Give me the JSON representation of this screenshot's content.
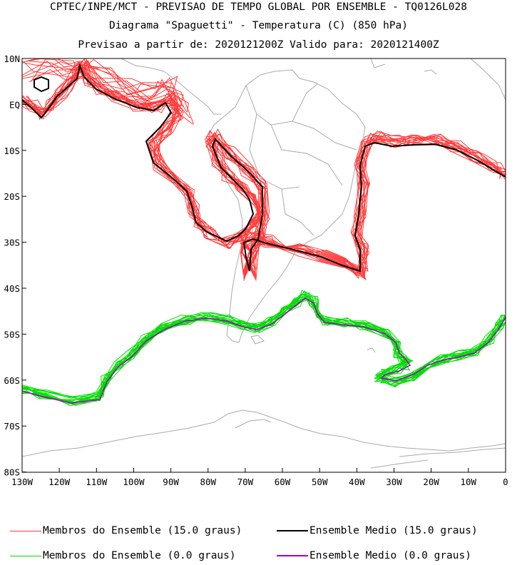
{
  "header": {
    "line1": "CPTEC/INPE/MCT - PREVISAO DE TEMPO GLOBAL POR ENSEMBLE - TQ0126L028",
    "line2": "Diagrama \"Spaguetti\" - Temperatura (C) (850 hPa)",
    "line3": "Previsao a partir de: 2020121200Z  Valido para: 2020121400Z"
  },
  "axes": {
    "lat_labels": [
      "10N",
      "EQ",
      "10S",
      "20S",
      "30S",
      "40S",
      "50S",
      "60S",
      "70S",
      "80S"
    ],
    "lon_labels": [
      "130W",
      "120W",
      "110W",
      "100W",
      "90W",
      "80W",
      "70W",
      "60W",
      "50W",
      "40W",
      "30W",
      "20W",
      "10W",
      "0"
    ]
  },
  "colors": {
    "members_15": "#ff3a3a",
    "mean_15": "#000000",
    "members_0": "#00dd00",
    "mean_0": "#a000c8",
    "coast": "#aaaaaa"
  },
  "legend": {
    "members_15": "Membros do Ensemble (15.0 graus)",
    "mean_15": "Ensemble Medio (15.0 graus)",
    "members_0": "Membros do Ensemble (0.0 graus)",
    "mean_0": "Ensemble Medio (0.0 graus)"
  }
}
